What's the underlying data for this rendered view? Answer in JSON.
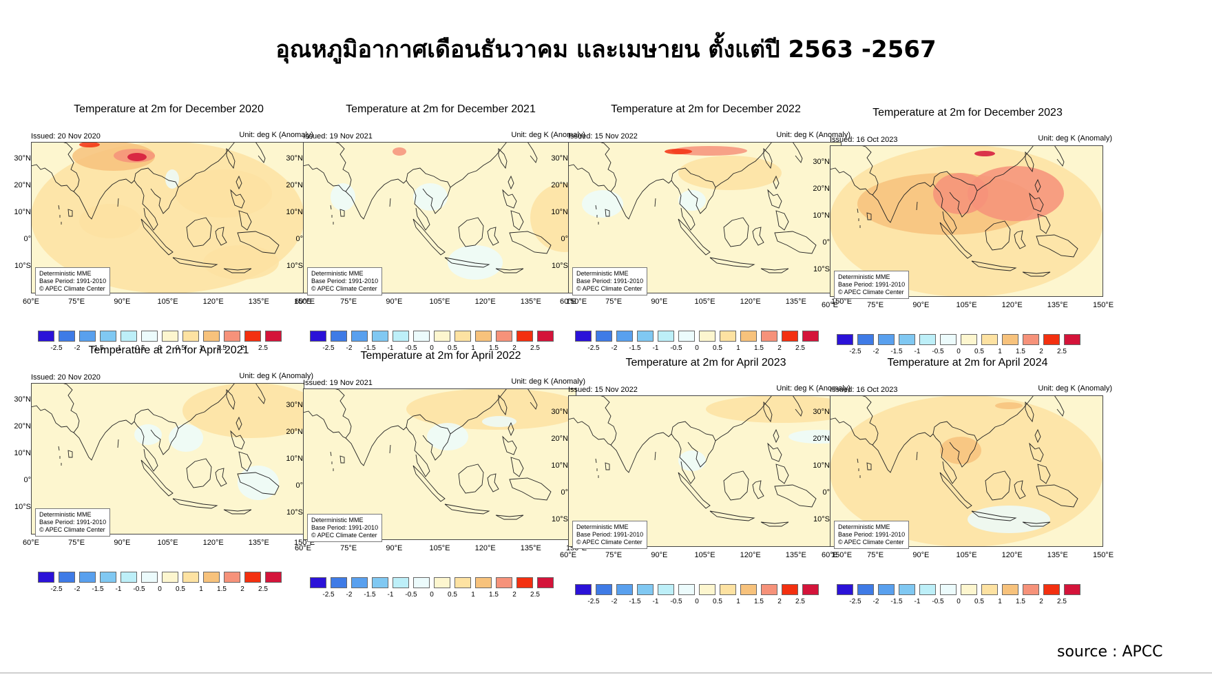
{
  "page": {
    "title": "อุณหภูมิอากาศเดือนธันวาคม และเมษายน ตั้งแต่ปี 2563 -2567",
    "source": "source : APCC"
  },
  "colors": {
    "land_outline": "#222222",
    "base_fill": "#fdf6cf",
    "scale": [
      "#2b12d8",
      "#3f7be6",
      "#59a0ee",
      "#80c8f2",
      "#bdeff8",
      "#ecfbfc",
      "#fdf6cf",
      "#fde2a2",
      "#f7c27c",
      "#f6927a",
      "#f33010",
      "#d4143a"
    ]
  },
  "colorbar_labels": [
    "-2.5",
    "-2",
    "-1.5",
    "-1",
    "-0.5",
    "0",
    "0.5",
    "1",
    "1.5",
    "2",
    "2.5"
  ],
  "lat_labels": [
    "30°N",
    "20°N",
    "10°N",
    "0°",
    "10°S"
  ],
  "lon_labels": [
    "60°E",
    "75°E",
    "90°E",
    "105°E",
    "120°E",
    "135°E",
    "150°E"
  ],
  "panels": [
    {
      "title": "Temperature at 2m for December 2020",
      "issued": "Issued: 20 Nov 2020",
      "unit": "Unit: deg K (Anomaly)",
      "box": [
        "Deterministic MME",
        "Base Period: 1991-2010",
        "© APEC Climate Center"
      ],
      "pattern": "dec2020"
    },
    {
      "title": "Temperature at 2m for December 2021",
      "issued": "Issued: 19 Nov 2021",
      "unit": "Unit: deg K (Anomaly)",
      "box": [
        "Deterministic MME",
        "Base Period: 1991-2010",
        "© APEC Climate Center"
      ],
      "pattern": "dec2021"
    },
    {
      "title": "Temperature at 2m for December 2022",
      "issued": "Issued: 15 Nov 2022",
      "unit": "Unit: deg K (Anomaly)",
      "box": [
        "Deterministic MME",
        "Base Period: 1991-2010",
        "© APEC Climate Center"
      ],
      "pattern": "dec2022"
    },
    {
      "title": "Temperature at 2m for December 2023",
      "issued": "Issued: 16 Oct 2023",
      "unit": "Unit: deg K (Anomaly)",
      "box": [
        "Deterministic MME",
        "Base Period: 1991-2010",
        "© APEC Climate Center"
      ],
      "pattern": "dec2023"
    },
    {
      "title": "Temperature at 2m for April 2021",
      "issued": "Issued: 20 Nov 2020",
      "unit": "Unit: deg K (Anomaly)",
      "box": [
        "Deterministic MME",
        "Base Period: 1991-2010",
        "© APEC Climate Center"
      ],
      "pattern": "apr2021"
    },
    {
      "title": "Temperature at 2m for April 2022",
      "issued": "Issued: 19 Nov 2021",
      "unit": "Unit: deg K (Anomaly)",
      "box": [
        "Deterministic MME",
        "Base Period: 1991-2010",
        "© APEC Climate Center"
      ],
      "pattern": "apr2022"
    },
    {
      "title": "Temperature at 2m for April 2023",
      "issued": "Issued: 15 Nov 2022",
      "unit": "Unit: deg K (Anomaly)",
      "box": [
        "Deterministic MME",
        "Base Period: 1991-2010",
        "© APEC Climate Center"
      ],
      "pattern": "apr2023"
    },
    {
      "title": "Temperature at 2m for April 2024",
      "issued": "Issued: 16 Oct 2023",
      "unit": "Unit: deg K (Anomaly)",
      "box": [
        "Deterministic MME",
        "Base Period: 1991-2010",
        "© APEC Climate Center"
      ],
      "pattern": "apr2024"
    }
  ]
}
